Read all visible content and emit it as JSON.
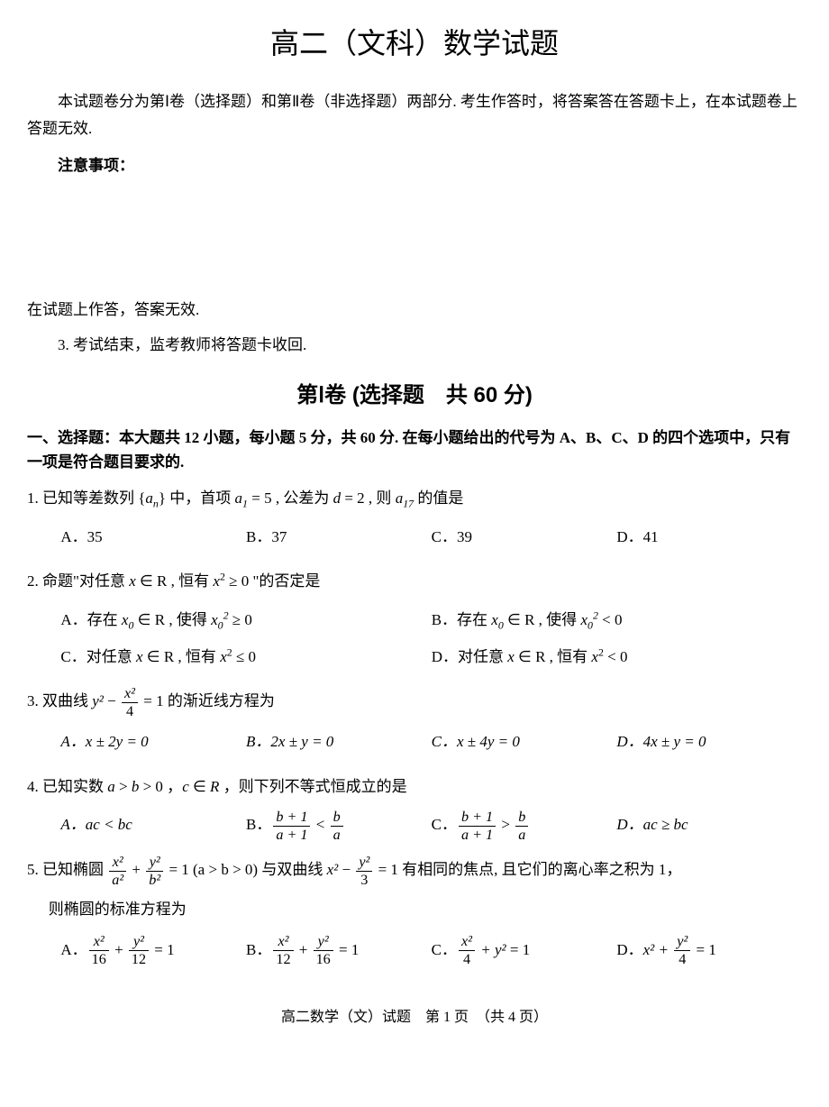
{
  "title": "高二（文科）数学试题",
  "intro": "本试题卷分为第Ⅰ卷（选择题）和第Ⅱ卷（非选择题）两部分. 考生作答时，将答案答在答题卡上，在本试题卷上答题无效.",
  "notice_label": "注意事项：",
  "note1": "在试题上作答，答案无效.",
  "note2": "3. 考试结束，监考教师将答题卡收回.",
  "section1_title": "第Ⅰ卷 (选择题　共 60 分)",
  "section1_intro": "一、选择题：本大题共 12 小题，每小题 5 分，共 60 分. 在每小题给出的代号为 A、B、C、D 的四个选项中，只有一项是符合题目要求的.",
  "q1": {
    "text_prefix": "1. 已知等差数列 {",
    "text_mid1": "} 中，首项 ",
    "text_mid2": " = 5 , 公差为 ",
    "text_mid3": " = 2 , 则 ",
    "text_suffix": " 的值是",
    "optA": "A．35",
    "optB": "B．37",
    "optC": "C．39",
    "optD": "D．41"
  },
  "q2": {
    "text": "2. 命题\"对任意 x ∈ R , 恒有 x² ≥ 0 \"的否定是",
    "optA_pre": "A．存在 ",
    "optA_mid": " ∈ R , 使得 ",
    "optA_suf": " ≥ 0",
    "optB_pre": "B．存在 ",
    "optB_mid": " ∈ R , 使得 ",
    "optB_suf": " < 0",
    "optC": "C．对任意 x ∈ R , 恒有 x² ≤ 0",
    "optD": "D．对任意 x ∈ R , 恒有 x² < 0"
  },
  "q3": {
    "text_prefix": "3. 双曲线 ",
    "text_suffix": " = 1 的渐近线方程为",
    "yterm": "y²",
    "minus": " − ",
    "num": "x²",
    "den": "4",
    "optA": "A．x ± 2y = 0",
    "optB": "B．2x ± y = 0",
    "optC": "C．x ± 4y = 0",
    "optD": "D．4x ± y = 0"
  },
  "q4": {
    "text": "4. 已知实数 a > b > 0 ， c ∈ R ，则下列不等式恒成立的是",
    "optA": "A．ac < bc",
    "optB_label": "B．",
    "optB_num1": "b + 1",
    "optB_den1": "a + 1",
    "optB_op": " < ",
    "optB_num2": "b",
    "optB_den2": "a",
    "optC_label": "C．",
    "optC_num1": "b + 1",
    "optC_den1": "a + 1",
    "optC_op": " > ",
    "optC_num2": "b",
    "optC_den2": "a",
    "optD": "D．ac ≥ bc"
  },
  "q5": {
    "text_prefix": "5. 已知椭圆 ",
    "n1": "x²",
    "d1": "a²",
    "plus": " + ",
    "n2": "y²",
    "d2": "b²",
    "mid1": " = 1 (a > b > 0)  与双曲线 ",
    "xterm": "x²",
    "minus": " − ",
    "n3": "y²",
    "d3": "3",
    "suffix": " = 1 有相同的焦点, 且它们的离心率之积为 1，",
    "line2": "则椭圆的标准方程为",
    "optA_label": "A．",
    "optA_n1": "x²",
    "optA_d1": "16",
    "optA_n2": "y²",
    "optA_d2": "12",
    "optA_eq": " = 1",
    "optB_label": "B．",
    "optB_n1": "x²",
    "optB_d1": "12",
    "optB_n2": "y²",
    "optB_d2": "16",
    "optB_eq": " = 1",
    "optC_label": "C．",
    "optC_n1": "x²",
    "optC_d1": "4",
    "optC_y": " + y²",
    "optC_eq": " = 1",
    "optD_label": "D．",
    "optD_x": "x² + ",
    "optD_n2": "y²",
    "optD_d2": "4",
    "optD_eq": " = 1"
  },
  "footer": "高二数学（文）试题　第 1 页　（共 4 页）"
}
